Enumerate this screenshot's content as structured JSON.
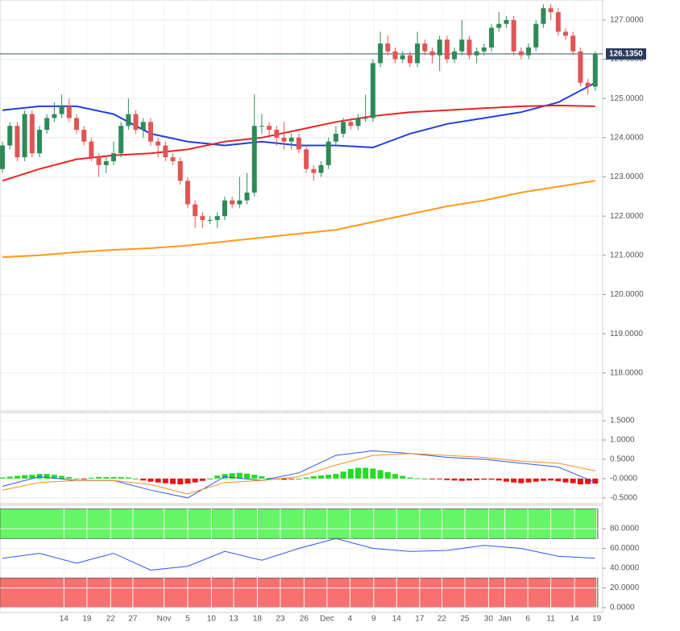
{
  "chart_data": [
    {
      "type": "candlestick",
      "xlim": [
        -0.33,
        81.0
      ],
      "ylim": [
        117.03,
        127.51
      ],
      "yticks": [
        {
          "value": 118,
          "label": "118.0000"
        },
        {
          "value": 119,
          "label": "119.0000"
        },
        {
          "value": 120,
          "label": "120.0000"
        },
        {
          "value": 121,
          "label": "121.0000"
        },
        {
          "value": 122,
          "label": "122.0000"
        },
        {
          "value": 123,
          "label": "123.0000"
        },
        {
          "value": 124,
          "label": "124.0000"
        },
        {
          "value": 125,
          "label": "125.0000"
        },
        {
          "value": 126,
          "label": "126.0000"
        },
        {
          "value": 127,
          "label": "127.0000"
        }
      ],
      "grid": true,
      "up_color": "#2e8b57",
      "down_color": "#e05555",
      "price_label": {
        "value": 126.135,
        "label": "126.1350"
      },
      "open": [
        123.2,
        123.8,
        124.3,
        123.5,
        124.6,
        123.6,
        124.2,
        124.5,
        124.6,
        124.8,
        124.5,
        124.2,
        123.9,
        123.5,
        123.3,
        123.4,
        123.6,
        124.3,
        124.6,
        124.2,
        124.4,
        123.9,
        123.8,
        123.5,
        123.4,
        122.9,
        122.3,
        122.0,
        121.9,
        121.9,
        122.0,
        122.4,
        122.3,
        122.4,
        122.6,
        124.3,
        124.3,
        124.2,
        124.0,
        123.9,
        124.0,
        123.7,
        123.2,
        123.1,
        123.3,
        123.9,
        124.1,
        124.4,
        124.3,
        124.5,
        124.5,
        125.9,
        126.4,
        126.2,
        126.0,
        126.1,
        125.9,
        126.4,
        126.2,
        126.1,
        126.5,
        126.0,
        126.2,
        126.5,
        126.1,
        126.2,
        126.3,
        126.8,
        126.9,
        127.0,
        126.2,
        126.1,
        126.3,
        126.9,
        127.3,
        127.2,
        126.7,
        126.6,
        126.2,
        125.4,
        125.3
      ],
      "high": [
        123.9,
        124.4,
        124.4,
        124.7,
        124.7,
        124.3,
        124.6,
        124.9,
        125.1,
        125.0,
        124.6,
        124.3,
        124.0,
        123.6,
        123.5,
        123.9,
        124.4,
        125.0,
        124.7,
        124.5,
        124.5,
        124.0,
        123.9,
        123.6,
        123.5,
        123.0,
        122.4,
        122.1,
        122.0,
        122.1,
        122.5,
        122.5,
        123.0,
        123.1,
        125.1,
        124.6,
        124.4,
        124.3,
        124.4,
        124.1,
        124.1,
        123.8,
        123.3,
        123.4,
        124.0,
        124.3,
        124.5,
        124.5,
        124.6,
        125.1,
        126.0,
        126.7,
        126.6,
        126.3,
        126.2,
        126.2,
        126.7,
        126.5,
        126.3,
        126.6,
        126.6,
        126.3,
        127.0,
        126.6,
        126.3,
        126.4,
        126.9,
        127.2,
        127.1,
        127.1,
        126.3,
        126.4,
        127.0,
        127.4,
        127.4,
        127.3,
        126.8,
        126.7,
        126.3,
        125.5,
        126.2
      ],
      "low": [
        123.1,
        123.7,
        123.4,
        123.4,
        123.5,
        123.5,
        124.1,
        124.4,
        124.5,
        124.4,
        124.1,
        123.8,
        123.4,
        123.0,
        123.1,
        123.3,
        123.5,
        124.2,
        124.1,
        124.0,
        123.8,
        123.5,
        123.4,
        123.3,
        122.8,
        122.2,
        121.7,
        121.7,
        121.8,
        121.7,
        121.9,
        122.2,
        122.2,
        122.3,
        122.5,
        124.1,
        124.0,
        123.8,
        123.7,
        123.7,
        123.6,
        123.1,
        122.9,
        123.0,
        123.2,
        123.8,
        124.0,
        124.2,
        124.2,
        124.4,
        124.4,
        125.8,
        126.1,
        125.9,
        125.9,
        125.8,
        125.8,
        126.1,
        125.9,
        125.7,
        125.9,
        125.9,
        126.1,
        126.0,
        125.9,
        126.1,
        126.2,
        126.7,
        126.8,
        126.1,
        126.0,
        126.0,
        126.2,
        126.8,
        127.0,
        126.6,
        126.5,
        126.1,
        125.3,
        125.1,
        125.2
      ],
      "close": [
        123.8,
        124.3,
        123.5,
        124.6,
        123.6,
        124.2,
        124.5,
        124.6,
        124.8,
        124.5,
        124.2,
        123.9,
        123.5,
        123.3,
        123.4,
        123.6,
        124.3,
        124.6,
        124.2,
        124.4,
        123.9,
        123.8,
        123.5,
        123.4,
        122.9,
        122.3,
        122.0,
        121.9,
        121.9,
        122.0,
        122.4,
        122.3,
        122.4,
        122.6,
        124.3,
        124.3,
        124.2,
        124.0,
        123.9,
        124.0,
        123.7,
        123.2,
        123.1,
        123.3,
        123.9,
        124.1,
        124.4,
        124.3,
        124.5,
        124.5,
        125.9,
        126.4,
        126.2,
        126.0,
        126.1,
        125.9,
        126.4,
        126.2,
        126.1,
        126.5,
        126.0,
        126.2,
        126.5,
        126.1,
        126.2,
        126.3,
        126.8,
        126.9,
        127.0,
        126.2,
        126.1,
        126.3,
        126.9,
        127.3,
        127.2,
        126.7,
        126.6,
        126.2,
        125.4,
        125.3,
        126.135
      ],
      "series": [
        {
          "color": "#1f3fe0",
          "x": [
            0,
            5,
            10,
            15,
            20,
            25,
            30,
            35,
            40,
            45,
            50,
            55,
            60,
            65,
            70,
            75,
            80
          ],
          "values": [
            124.7,
            124.8,
            124.8,
            124.6,
            124.1,
            123.9,
            123.8,
            123.9,
            123.8,
            123.8,
            123.75,
            124.1,
            124.35,
            124.5,
            124.65,
            124.9,
            125.4
          ]
        },
        {
          "color": "#ee2222",
          "x": [
            0,
            5,
            10,
            15,
            20,
            25,
            30,
            35,
            40,
            45,
            50,
            55,
            60,
            65,
            70,
            75,
            80
          ],
          "values": [
            122.9,
            123.2,
            123.45,
            123.55,
            123.6,
            123.7,
            123.9,
            124.0,
            124.2,
            124.4,
            124.55,
            124.65,
            124.7,
            124.75,
            124.8,
            124.82,
            124.8
          ]
        },
        {
          "color": "#ff9a1a",
          "x": [
            0,
            5,
            10,
            15,
            20,
            25,
            30,
            35,
            40,
            45,
            50,
            55,
            60,
            65,
            70,
            75,
            80
          ],
          "values": [
            120.95,
            121.0,
            121.08,
            121.14,
            121.18,
            121.25,
            121.35,
            121.45,
            121.55,
            121.65,
            121.85,
            122.05,
            122.25,
            122.4,
            122.6,
            122.75,
            122.9
          ]
        }
      ]
    },
    {
      "type": "macd",
      "xlim": [
        -0.33,
        81.0
      ],
      "ylim": [
        -0.65,
        1.71
      ],
      "yticks": [
        {
          "value": -0.5,
          "label": "-0.5000"
        },
        {
          "value": 0,
          "label": "-0.0000"
        },
        {
          "value": 0.5,
          "label": "0.5000"
        },
        {
          "value": 1,
          "label": "1.0000"
        },
        {
          "value": 1.5,
          "label": "1.5000"
        }
      ],
      "grid": true,
      "up_color": "#22dd22",
      "down_color": "#ee1111",
      "histogram": [
        0.03,
        0.05,
        0.07,
        0.09,
        0.1,
        0.12,
        0.12,
        0.1,
        0.07,
        0.04,
        0.0,
        -0.02,
        0.02,
        0.04,
        0.04,
        0.04,
        0.04,
        0.03,
        0.0,
        -0.05,
        -0.08,
        -0.1,
        -0.12,
        -0.14,
        -0.15,
        -0.13,
        -0.1,
        -0.06,
        0.0,
        0.08,
        0.12,
        0.14,
        0.15,
        0.13,
        0.1,
        0.06,
        0.02,
        -0.02,
        -0.03,
        -0.02,
        0.0,
        0.03,
        0.06,
        0.08,
        0.1,
        0.12,
        0.18,
        0.25,
        0.28,
        0.28,
        0.26,
        0.22,
        0.17,
        0.12,
        0.07,
        0.03,
        0.01,
        0.0,
        -0.01,
        -0.02,
        -0.04,
        -0.05,
        -0.06,
        -0.05,
        -0.04,
        -0.03,
        -0.03,
        -0.05,
        -0.08,
        -0.1,
        -0.12,
        -0.1,
        -0.08,
        -0.06,
        -0.05,
        -0.07,
        -0.1,
        -0.12,
        -0.15,
        -0.14,
        -0.13
      ],
      "series": [
        {
          "color": "#3355ee",
          "x": [
            0,
            5,
            10,
            15,
            20,
            25,
            30,
            35,
            40,
            45,
            50,
            55,
            60,
            65,
            70,
            75,
            80
          ],
          "values": [
            -0.2,
            0.05,
            -0.05,
            -0.05,
            -0.3,
            -0.5,
            0.05,
            -0.05,
            0.15,
            0.6,
            0.72,
            0.65,
            0.55,
            0.5,
            0.4,
            0.3,
            -0.1
          ]
        },
        {
          "color": "#ff8c1a",
          "x": [
            0,
            5,
            10,
            15,
            20,
            25,
            30,
            35,
            40,
            45,
            50,
            55,
            60,
            65,
            70,
            75,
            80
          ],
          "values": [
            -0.3,
            -0.1,
            -0.05,
            -0.05,
            -0.15,
            -0.4,
            -0.1,
            -0.05,
            0.05,
            0.35,
            0.6,
            0.65,
            0.6,
            0.55,
            0.45,
            0.4,
            0.2
          ]
        }
      ]
    },
    {
      "type": "line",
      "xlim": [
        -0.33,
        81.0
      ],
      "ylim": [
        -4.9,
        103.7
      ],
      "yticks": [
        {
          "value": 0,
          "label": "0.0000"
        },
        {
          "value": 20,
          "label": "20.0000"
        },
        {
          "value": 40,
          "label": "40.0000"
        },
        {
          "value": 60,
          "label": "60.0000"
        },
        {
          "value": 80,
          "label": "80.0000"
        }
      ],
      "grid": true,
      "zones": [
        {
          "from": 70,
          "to": 100,
          "color": "#66f566"
        },
        {
          "from": 0,
          "to": 30,
          "color": "#f87070"
        }
      ],
      "series": [
        {
          "color": "#3355ee",
          "x": [
            0,
            5,
            10,
            15,
            20,
            25,
            30,
            35,
            40,
            45,
            50,
            55,
            60,
            65,
            70,
            75,
            80
          ],
          "values": [
            50,
            55,
            45,
            55,
            38,
            42,
            57,
            48,
            60,
            70,
            60,
            57,
            58,
            63,
            60,
            52,
            50
          ]
        }
      ],
      "xticks": [
        {
          "value": 8.3,
          "label": "14"
        },
        {
          "value": 11.4,
          "label": "19"
        },
        {
          "value": 14.6,
          "label": "22"
        },
        {
          "value": 17.6,
          "label": "27"
        },
        {
          "value": 21.8,
          "label": "Nov"
        },
        {
          "value": 25,
          "label": "5"
        },
        {
          "value": 28.2,
          "label": "10"
        },
        {
          "value": 31.2,
          "label": "13"
        },
        {
          "value": 34.4,
          "label": "18"
        },
        {
          "value": 37.5,
          "label": "23"
        },
        {
          "value": 40.7,
          "label": "26"
        },
        {
          "value": 43.8,
          "label": "Dec"
        },
        {
          "value": 46.9,
          "label": "4"
        },
        {
          "value": 50.1,
          "label": "9"
        },
        {
          "value": 53.2,
          "label": "14"
        },
        {
          "value": 56.3,
          "label": "17"
        },
        {
          "value": 59.3,
          "label": "22"
        },
        {
          "value": 62.4,
          "label": "25"
        },
        {
          "value": 65.6,
          "label": "30"
        },
        {
          "value": 67.8,
          "label": "Jan"
        },
        {
          "value": 70.9,
          "label": "6"
        },
        {
          "value": 74.0,
          "label": "11"
        },
        {
          "value": 77.2,
          "label": "14"
        },
        {
          "value": 80.2,
          "label": "19"
        }
      ]
    }
  ]
}
